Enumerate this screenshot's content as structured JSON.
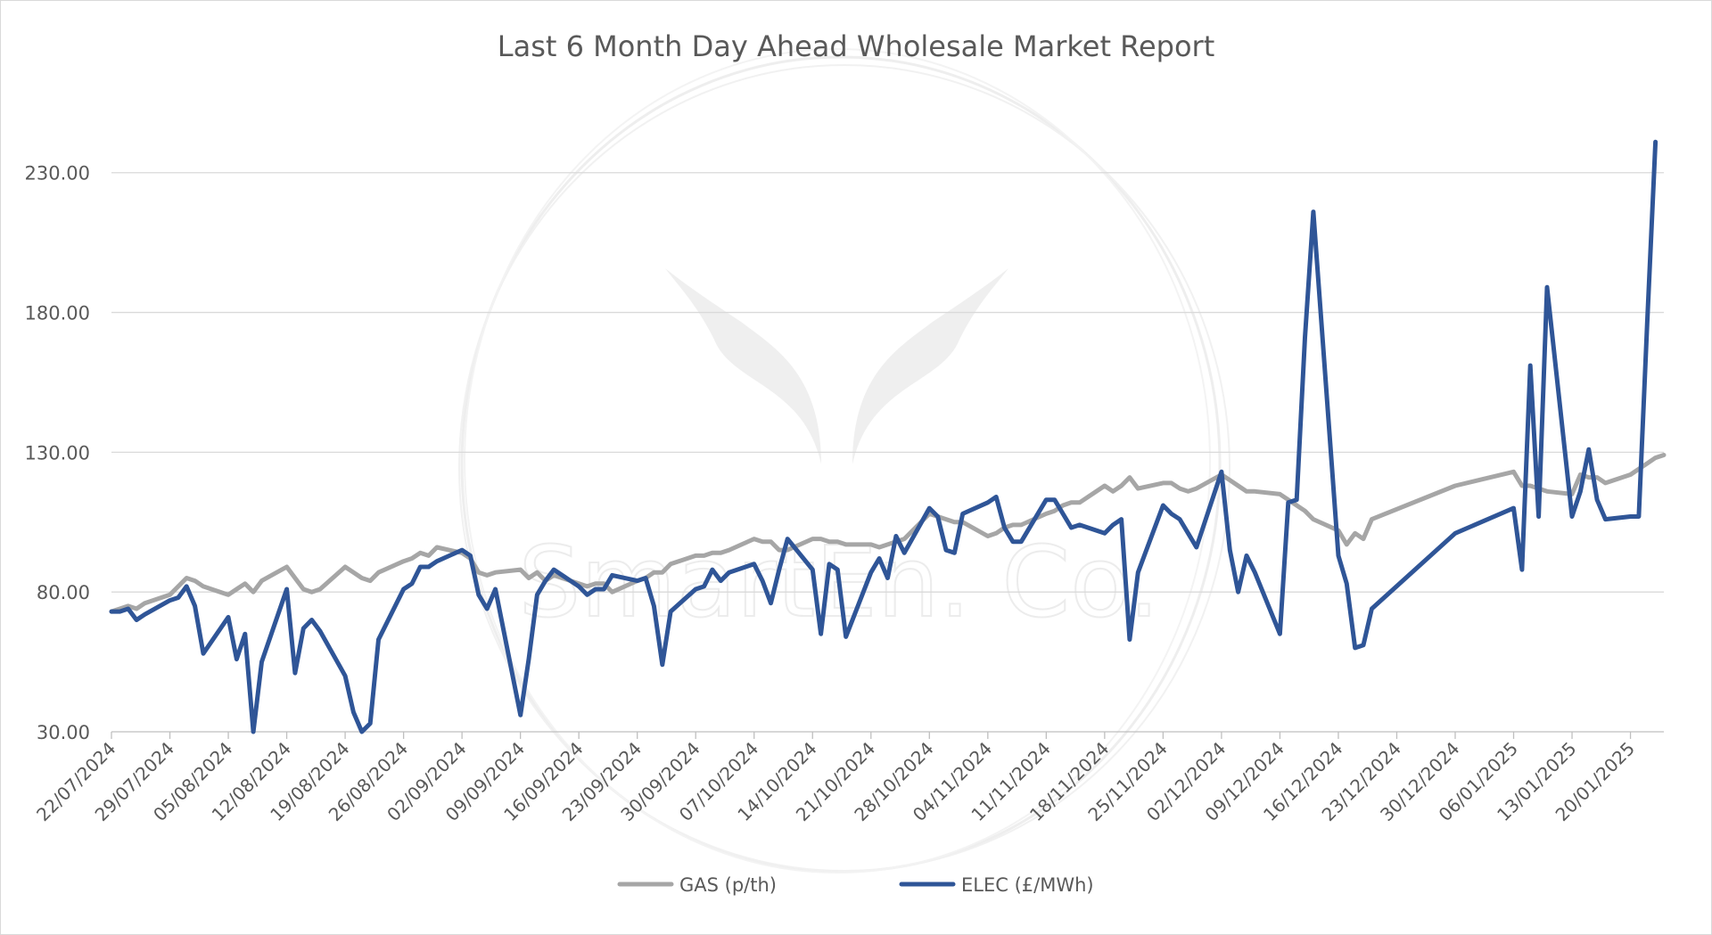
{
  "chart_data": {
    "type": "line",
    "title": "Last 6 Month Day Ahead Wholesale Market Report",
    "watermark_text": "SmartEn. Co.",
    "xlabel": "",
    "ylabel": "",
    "ylim": [
      30,
      250
    ],
    "yticks": [
      "30.00",
      "80.00",
      "130.00",
      "180.00",
      "230.00"
    ],
    "yticks_values": [
      30,
      80,
      130,
      180,
      230
    ],
    "x_start": "22/07/2024",
    "x_end": "24/01/2025",
    "xticks": [
      "22/07/2024",
      "29/07/2024",
      "05/08/2024",
      "12/08/2024",
      "19/08/2024",
      "26/08/2024",
      "02/09/2024",
      "09/09/2024",
      "16/09/2024",
      "23/09/2024",
      "30/09/2024",
      "07/10/2024",
      "14/10/2024",
      "21/10/2024",
      "28/10/2024",
      "04/11/2024",
      "11/11/2024",
      "18/11/2024",
      "25/11/2024",
      "02/12/2024",
      "09/12/2024",
      "16/12/2024",
      "23/12/2024",
      "30/12/2024",
      "06/01/2025",
      "13/01/2025",
      "20/01/2025"
    ],
    "grid": true,
    "legend_position": "bottom",
    "colors": {
      "gas": "#a6a6a6",
      "elec": "#2f5597"
    },
    "series": [
      {
        "name": "GAS (p/th)",
        "color": "#a6a6a6",
        "points": [
          [
            "22/07/2024",
            73.0
          ],
          [
            "23/07/2024",
            74.0
          ],
          [
            "24/07/2024",
            75.0
          ],
          [
            "25/07/2024",
            74.0
          ],
          [
            "26/07/2024",
            76.0
          ],
          [
            "29/07/2024",
            79.0
          ],
          [
            "30/07/2024",
            82.0
          ],
          [
            "31/07/2024",
            85.0
          ],
          [
            "01/08/2024",
            84.0
          ],
          [
            "02/08/2024",
            82.0
          ],
          [
            "05/08/2024",
            79.0
          ],
          [
            "06/08/2024",
            81.0
          ],
          [
            "07/08/2024",
            83.0
          ],
          [
            "08/08/2024",
            80.0
          ],
          [
            "09/08/2024",
            84.0
          ],
          [
            "12/08/2024",
            89.0
          ],
          [
            "13/08/2024",
            85.0
          ],
          [
            "14/08/2024",
            81.0
          ],
          [
            "15/08/2024",
            80.0
          ],
          [
            "16/08/2024",
            81.0
          ],
          [
            "19/08/2024",
            89.0
          ],
          [
            "20/08/2024",
            87.0
          ],
          [
            "21/08/2024",
            85.0
          ],
          [
            "22/08/2024",
            84.0
          ],
          [
            "23/08/2024",
            87.0
          ],
          [
            "26/08/2024",
            91.0
          ],
          [
            "27/08/2024",
            92.0
          ],
          [
            "28/08/2024",
            94.0
          ],
          [
            "29/08/2024",
            93.0
          ],
          [
            "30/08/2024",
            96.0
          ],
          [
            "02/09/2024",
            94.0
          ],
          [
            "03/09/2024",
            92.0
          ],
          [
            "04/09/2024",
            87.0
          ],
          [
            "05/09/2024",
            86.0
          ],
          [
            "06/09/2024",
            87.0
          ],
          [
            "09/09/2024",
            88.0
          ],
          [
            "10/09/2024",
            85.0
          ],
          [
            "11/09/2024",
            87.0
          ],
          [
            "12/09/2024",
            84.0
          ],
          [
            "13/09/2024",
            86.0
          ],
          [
            "16/09/2024",
            83.0
          ],
          [
            "17/09/2024",
            82.0
          ],
          [
            "18/09/2024",
            83.0
          ],
          [
            "19/09/2024",
            83.0
          ],
          [
            "20/09/2024",
            80.0
          ],
          [
            "23/09/2024",
            84.0
          ],
          [
            "24/09/2024",
            85.0
          ],
          [
            "25/09/2024",
            87.0
          ],
          [
            "26/09/2024",
            87.0
          ],
          [
            "27/09/2024",
            90.0
          ],
          [
            "30/09/2024",
            93.0
          ],
          [
            "01/10/2024",
            93.0
          ],
          [
            "02/10/2024",
            94.0
          ],
          [
            "03/10/2024",
            94.0
          ],
          [
            "04/10/2024",
            95.0
          ],
          [
            "07/10/2024",
            99.0
          ],
          [
            "08/10/2024",
            98.0
          ],
          [
            "09/10/2024",
            98.0
          ],
          [
            "10/10/2024",
            95.0
          ],
          [
            "11/10/2024",
            95.0
          ],
          [
            "14/10/2024",
            99.0
          ],
          [
            "15/10/2024",
            99.0
          ],
          [
            "16/10/2024",
            98.0
          ],
          [
            "17/10/2024",
            98.0
          ],
          [
            "18/10/2024",
            97.0
          ],
          [
            "21/10/2024",
            97.0
          ],
          [
            "22/10/2024",
            96.0
          ],
          [
            "23/10/2024",
            97.0
          ],
          [
            "24/10/2024",
            98.0
          ],
          [
            "25/10/2024",
            99.0
          ],
          [
            "28/10/2024",
            108.0
          ],
          [
            "29/10/2024",
            107.0
          ],
          [
            "30/10/2024",
            106.0
          ],
          [
            "31/10/2024",
            105.0
          ],
          [
            "01/11/2024",
            105.0
          ],
          [
            "04/11/2024",
            100.0
          ],
          [
            "05/11/2024",
            101.0
          ],
          [
            "06/11/2024",
            103.0
          ],
          [
            "07/11/2024",
            104.0
          ],
          [
            "08/11/2024",
            104.0
          ],
          [
            "11/11/2024",
            108.0
          ],
          [
            "12/11/2024",
            109.0
          ],
          [
            "13/11/2024",
            111.0
          ],
          [
            "14/11/2024",
            112.0
          ],
          [
            "15/11/2024",
            112.0
          ],
          [
            "18/11/2024",
            118.0
          ],
          [
            "19/11/2024",
            116.0
          ],
          [
            "20/11/2024",
            118.0
          ],
          [
            "21/11/2024",
            121.0
          ],
          [
            "22/11/2024",
            117.0
          ],
          [
            "25/11/2024",
            119.0
          ],
          [
            "26/11/2024",
            119.0
          ],
          [
            "27/11/2024",
            117.0
          ],
          [
            "28/11/2024",
            116.0
          ],
          [
            "29/11/2024",
            117.0
          ],
          [
            "02/12/2024",
            122.0
          ],
          [
            "03/12/2024",
            120.0
          ],
          [
            "04/12/2024",
            118.0
          ],
          [
            "05/12/2024",
            116.0
          ],
          [
            "06/12/2024",
            116.0
          ],
          [
            "09/12/2024",
            115.0
          ],
          [
            "10/12/2024",
            113.0
          ],
          [
            "11/12/2024",
            111.0
          ],
          [
            "12/12/2024",
            109.0
          ],
          [
            "13/12/2024",
            106.0
          ],
          [
            "16/12/2024",
            102.0
          ],
          [
            "17/12/2024",
            97.0
          ],
          [
            "18/12/2024",
            101.0
          ],
          [
            "19/12/2024",
            99.0
          ],
          [
            "20/12/2024",
            106.0
          ],
          [
            "30/12/2024",
            118.0
          ],
          [
            "06/01/2025",
            123.0
          ],
          [
            "07/01/2025",
            118.0
          ],
          [
            "08/01/2025",
            118.0
          ],
          [
            "09/01/2025",
            117.0
          ],
          [
            "10/01/2025",
            116.0
          ],
          [
            "13/01/2025",
            115.0
          ],
          [
            "14/01/2025",
            122.0
          ],
          [
            "15/01/2025",
            121.0
          ],
          [
            "16/01/2025",
            121.0
          ],
          [
            "17/01/2025",
            119.0
          ],
          [
            "20/01/2025",
            122.0
          ],
          [
            "21/01/2025",
            124.0
          ],
          [
            "22/01/2025",
            126.0
          ],
          [
            "23/01/2025",
            128.0
          ],
          [
            "24/01/2025",
            129.0
          ]
        ]
      },
      {
        "name": "ELEC (£/MWh)",
        "color": "#2f5597",
        "points": [
          [
            "22/07/2024",
            73.0
          ],
          [
            "23/07/2024",
            73.0
          ],
          [
            "24/07/2024",
            74.0
          ],
          [
            "25/07/2024",
            70.0
          ],
          [
            "26/07/2024",
            72.0
          ],
          [
            "29/07/2024",
            77.0
          ],
          [
            "30/07/2024",
            78.0
          ],
          [
            "31/07/2024",
            82.0
          ],
          [
            "01/08/2024",
            75.0
          ],
          [
            "02/08/2024",
            58.0
          ],
          [
            "05/08/2024",
            71.0
          ],
          [
            "06/08/2024",
            56.0
          ],
          [
            "07/08/2024",
            65.0
          ],
          [
            "08/08/2024",
            30.0
          ],
          [
            "09/08/2024",
            55.0
          ],
          [
            "12/08/2024",
            81.0
          ],
          [
            "13/08/2024",
            51.0
          ],
          [
            "14/08/2024",
            67.0
          ],
          [
            "15/08/2024",
            70.0
          ],
          [
            "16/08/2024",
            66.0
          ],
          [
            "19/08/2024",
            50.0
          ],
          [
            "20/08/2024",
            37.0
          ],
          [
            "21/08/2024",
            30.0
          ],
          [
            "22/08/2024",
            33.0
          ],
          [
            "23/08/2024",
            63.0
          ],
          [
            "26/08/2024",
            81.0
          ],
          [
            "27/08/2024",
            83.0
          ],
          [
            "28/08/2024",
            89.0
          ],
          [
            "29/08/2024",
            89.0
          ],
          [
            "30/08/2024",
            91.0
          ],
          [
            "02/09/2024",
            95.0
          ],
          [
            "03/09/2024",
            93.0
          ],
          [
            "04/09/2024",
            79.0
          ],
          [
            "05/09/2024",
            74.0
          ],
          [
            "06/09/2024",
            81.0
          ],
          [
            "09/09/2024",
            36.0
          ],
          [
            "10/09/2024",
            56.0
          ],
          [
            "11/09/2024",
            79.0
          ],
          [
            "12/09/2024",
            84.0
          ],
          [
            "13/09/2024",
            88.0
          ],
          [
            "16/09/2024",
            82.0
          ],
          [
            "17/09/2024",
            79.0
          ],
          [
            "18/09/2024",
            81.0
          ],
          [
            "19/09/2024",
            81.0
          ],
          [
            "20/09/2024",
            86.0
          ],
          [
            "23/09/2024",
            84.0
          ],
          [
            "24/09/2024",
            85.0
          ],
          [
            "25/09/2024",
            75.0
          ],
          [
            "26/09/2024",
            54.0
          ],
          [
            "27/09/2024",
            73.0
          ],
          [
            "30/09/2024",
            81.0
          ],
          [
            "01/10/2024",
            82.0
          ],
          [
            "02/10/2024",
            88.0
          ],
          [
            "03/10/2024",
            84.0
          ],
          [
            "04/10/2024",
            87.0
          ],
          [
            "07/10/2024",
            90.0
          ],
          [
            "08/10/2024",
            84.0
          ],
          [
            "09/10/2024",
            76.0
          ],
          [
            "10/10/2024",
            88.0
          ],
          [
            "11/10/2024",
            99.0
          ],
          [
            "14/10/2024",
            88.0
          ],
          [
            "15/10/2024",
            65.0
          ],
          [
            "16/10/2024",
            90.0
          ],
          [
            "17/10/2024",
            88.0
          ],
          [
            "18/10/2024",
            64.0
          ],
          [
            "21/10/2024",
            87.0
          ],
          [
            "22/10/2024",
            92.0
          ],
          [
            "23/10/2024",
            85.0
          ],
          [
            "24/10/2024",
            100.0
          ],
          [
            "25/10/2024",
            94.0
          ],
          [
            "28/10/2024",
            110.0
          ],
          [
            "29/10/2024",
            107.0
          ],
          [
            "30/10/2024",
            95.0
          ],
          [
            "31/10/2024",
            94.0
          ],
          [
            "01/11/2024",
            108.0
          ],
          [
            "04/11/2024",
            112.0
          ],
          [
            "05/11/2024",
            114.0
          ],
          [
            "06/11/2024",
            103.0
          ],
          [
            "07/11/2024",
            98.0
          ],
          [
            "08/11/2024",
            98.0
          ],
          [
            "11/11/2024",
            113.0
          ],
          [
            "12/11/2024",
            113.0
          ],
          [
            "13/11/2024",
            108.0
          ],
          [
            "14/11/2024",
            103.0
          ],
          [
            "15/11/2024",
            104.0
          ],
          [
            "18/11/2024",
            101.0
          ],
          [
            "19/11/2024",
            104.0
          ],
          [
            "20/11/2024",
            106.0
          ],
          [
            "21/11/2024",
            63.0
          ],
          [
            "22/11/2024",
            87.0
          ],
          [
            "25/11/2024",
            111.0
          ],
          [
            "26/11/2024",
            108.0
          ],
          [
            "27/11/2024",
            106.0
          ],
          [
            "28/11/2024",
            101.0
          ],
          [
            "29/11/2024",
            96.0
          ],
          [
            "02/12/2024",
            123.0
          ],
          [
            "03/12/2024",
            95.0
          ],
          [
            "04/12/2024",
            80.0
          ],
          [
            "05/12/2024",
            93.0
          ],
          [
            "06/12/2024",
            87.0
          ],
          [
            "09/12/2024",
            65.0
          ],
          [
            "10/12/2024",
            112.0
          ],
          [
            "11/12/2024",
            113.0
          ],
          [
            "12/12/2024",
            171.0
          ],
          [
            "13/12/2024",
            216.0
          ],
          [
            "16/12/2024",
            93.0
          ],
          [
            "17/12/2024",
            83.0
          ],
          [
            "18/12/2024",
            60.0
          ],
          [
            "19/12/2024",
            61.0
          ],
          [
            "20/12/2024",
            74.0
          ],
          [
            "30/12/2024",
            101.0
          ],
          [
            "06/01/2025",
            110.0
          ],
          [
            "07/01/2025",
            88.0
          ],
          [
            "08/01/2025",
            161.0
          ],
          [
            "09/01/2025",
            107.0
          ],
          [
            "10/01/2025",
            189.0
          ],
          [
            "13/01/2025",
            107.0
          ],
          [
            "14/01/2025",
            116.0
          ],
          [
            "15/01/2025",
            131.0
          ],
          [
            "16/01/2025",
            113.0
          ],
          [
            "17/01/2025",
            106.0
          ],
          [
            "20/01/2025",
            107.0
          ],
          [
            "21/01/2025",
            107.0
          ],
          [
            "22/01/2025",
            176.0
          ],
          [
            "23/01/2025",
            241.0
          ]
        ]
      }
    ]
  }
}
